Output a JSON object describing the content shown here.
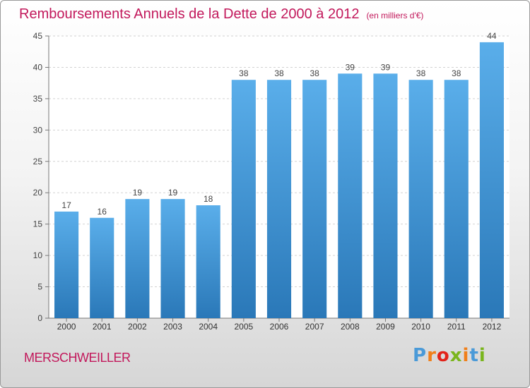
{
  "title": "Remboursements Annuels de la Dette de 2000 à 2012",
  "subtitle": "(en milliers d'€)",
  "place": "MERSCHWEILLER",
  "brand": {
    "text": "Proxiti",
    "letter_colors": [
      "#4a9ad8",
      "#f07f1a",
      "#e2231a",
      "#7ab51d",
      "#f07f1a",
      "#4a9ad8",
      "#7ab51d"
    ]
  },
  "colors": {
    "bar_top": "#5aaeea",
    "bar_bottom": "#2a78b8",
    "title": "#c2185b"
  },
  "chart_data": {
    "type": "bar",
    "categories": [
      "2000",
      "2001",
      "2002",
      "2003",
      "2004",
      "2005",
      "2006",
      "2007",
      "2008",
      "2009",
      "2010",
      "2011",
      "2012"
    ],
    "values": [
      17,
      16,
      19,
      19,
      18,
      38,
      38,
      38,
      39,
      39,
      38,
      38,
      44
    ],
    "ylim": [
      0,
      45
    ],
    "yticks": [
      0,
      5,
      10,
      15,
      20,
      25,
      30,
      35,
      40,
      45
    ],
    "grid": true,
    "legend": "none"
  }
}
